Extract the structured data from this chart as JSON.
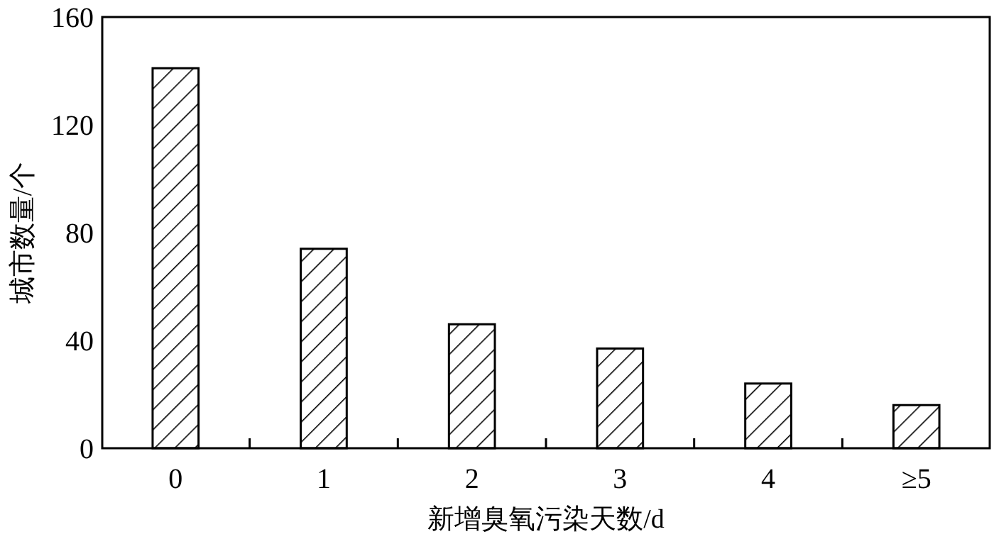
{
  "chart_data": {
    "type": "bar",
    "xlabel": "新增臭氧污染天数/d",
    "ylabel": "城市数量/个",
    "categories": [
      "0",
      "1",
      "2",
      "3",
      "4",
      "≥5"
    ],
    "values": [
      141,
      74,
      46,
      37,
      24,
      16
    ],
    "color": "#000000",
    "ylim": [
      0,
      160
    ],
    "yticks": [
      0,
      40,
      80,
      120,
      160
    ],
    "grid": false
  }
}
